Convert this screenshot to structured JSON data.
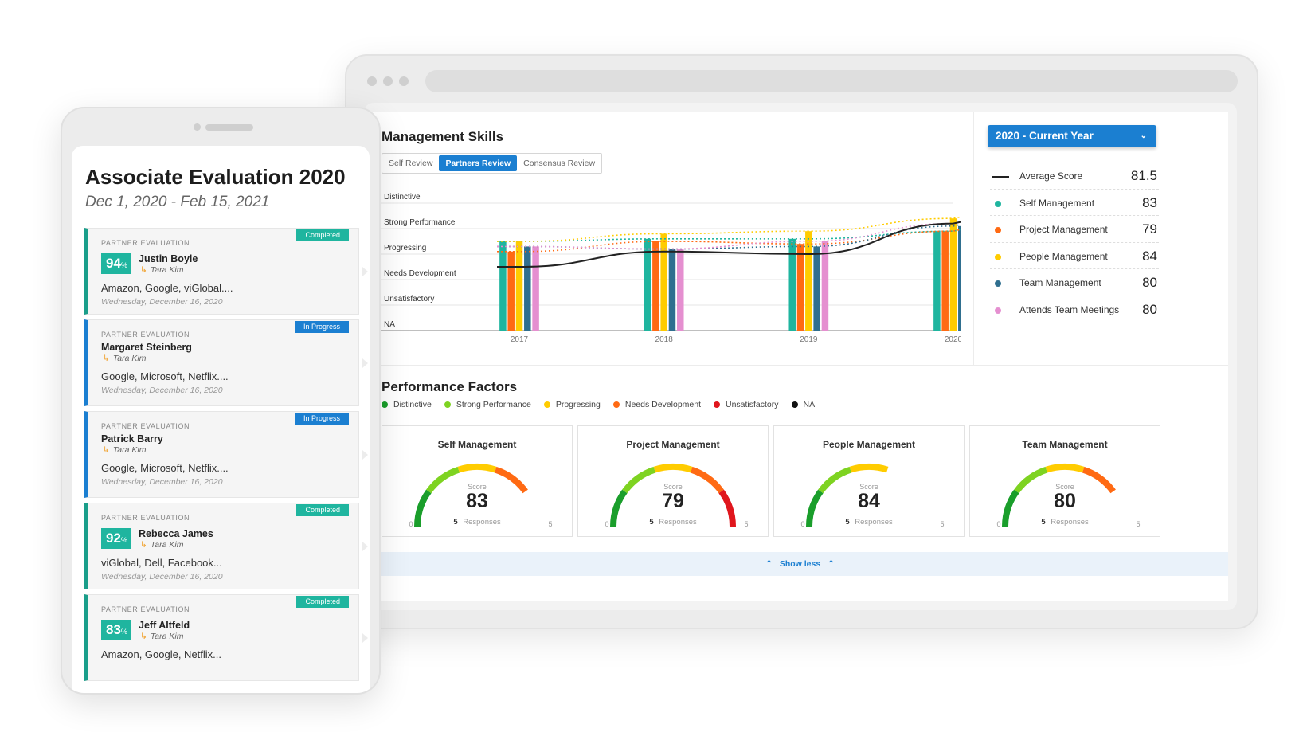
{
  "desktop": {
    "management_skills": {
      "title": "Management Skills",
      "tabs": [
        {
          "label": "Self Review",
          "active": false
        },
        {
          "label": "Partners Review",
          "active": true
        },
        {
          "label": "Consensus Review",
          "active": false
        }
      ]
    },
    "chart_data": {
      "type": "bar",
      "y_categories": [
        "Distinctive",
        "Strong Performance",
        "Progressing",
        "Needs Development",
        "Unsatisfactory",
        "NA"
      ],
      "categories": [
        "2017",
        "2018",
        "2019",
        "2020"
      ],
      "series": [
        {
          "name": "Self Management",
          "color": "#1fb59f",
          "values": [
            3.5,
            3.6,
            3.6,
            3.9
          ]
        },
        {
          "name": "Project Management",
          "color": "#ff6a13",
          "values": [
            3.1,
            3.5,
            3.4,
            3.9
          ]
        },
        {
          "name": "People Management",
          "color": "#ffcc00",
          "values": [
            3.5,
            3.8,
            3.9,
            4.4
          ]
        },
        {
          "name": "Team Management",
          "color": "#2f6f8f",
          "values": [
            3.3,
            3.2,
            3.3,
            4.1
          ]
        },
        {
          "name": "Attends Team Meetings",
          "color": "#e58fd0",
          "values": [
            3.3,
            3.2,
            3.5,
            4.2
          ]
        }
      ],
      "average_line": {
        "name": "Average Score",
        "color": "#222222",
        "values": [
          2.5,
          3.1,
          3.0,
          4.2
        ]
      },
      "ylim": [
        0,
        5
      ],
      "grid": true
    },
    "year_select": {
      "label": "2020 - Current Year"
    },
    "legend": [
      {
        "name": "Average Score",
        "value": "81.5",
        "color": "#222222",
        "line": true
      },
      {
        "name": "Self Management",
        "value": "83",
        "color": "#1fb59f"
      },
      {
        "name": "Project Management",
        "value": "79",
        "color": "#ff6a13"
      },
      {
        "name": "People Management",
        "value": "84",
        "color": "#ffcc00"
      },
      {
        "name": "Team Management",
        "value": "80",
        "color": "#2f6f8f"
      },
      {
        "name": "Attends Team Meetings",
        "value": "80",
        "color": "#e58fd0"
      }
    ],
    "performance_factors": {
      "title": "Performance Factors",
      "legend": [
        {
          "name": "Distinctive",
          "color": "#1a9e2b"
        },
        {
          "name": "Strong Performance",
          "color": "#7ed321"
        },
        {
          "name": "Progressing",
          "color": "#ffcc00"
        },
        {
          "name": "Needs Development",
          "color": "#ff6a13"
        },
        {
          "name": "Unsatisfactory",
          "color": "#e0161d"
        },
        {
          "name": "NA",
          "color": "#111111"
        }
      ],
      "gauges": [
        {
          "title": "Self Management",
          "score_label": "Score",
          "score": "83",
          "responses": "5",
          "responses_label": "Responses",
          "min": "0",
          "max": "5",
          "segments": [
            "#1a9e2b",
            "#7ed321",
            "#ffcc00",
            "#ff6a13"
          ]
        },
        {
          "title": "Project Management",
          "score_label": "Score",
          "score": "79",
          "responses": "5",
          "responses_label": "Responses",
          "min": "0",
          "max": "5",
          "segments": [
            "#1a9e2b",
            "#7ed321",
            "#ffcc00",
            "#ff6a13",
            "#e0161d"
          ]
        },
        {
          "title": "People Management",
          "score_label": "Score",
          "score": "84",
          "responses": "5",
          "responses_label": "Responses",
          "min": "0",
          "max": "5",
          "segments": [
            "#1a9e2b",
            "#7ed321",
            "#ffcc00"
          ]
        },
        {
          "title": "Team Management",
          "score_label": "Score",
          "score": "80",
          "responses": "5",
          "responses_label": "Responses",
          "min": "0",
          "max": "5",
          "segments": [
            "#1a9e2b",
            "#7ed321",
            "#ffcc00",
            "#ff6a13"
          ]
        }
      ],
      "show_less": "Show less"
    }
  },
  "mobile": {
    "title": "Associate Evaluation 2020",
    "date_range": "Dec 1, 2020 - Feb 15, 2021",
    "evaluations": [
      {
        "kind": "PARTNER EVALUATION",
        "status": "Completed",
        "score": "94",
        "score_unit": "%",
        "name": "Justin Boyle",
        "reviewer": "Tara Kim",
        "companies": "Amazon, Google, viGlobal....",
        "date": "Wednesday, December 16, 2020"
      },
      {
        "kind": "PARTNER EVALUATION",
        "status": "In Progress",
        "score": null,
        "score_unit": null,
        "name": "Margaret Steinberg",
        "reviewer": "Tara Kim",
        "companies": "Google, Microsoft, Netflix....",
        "date": "Wednesday, December 16, 2020"
      },
      {
        "kind": "PARTNER EVALUATION",
        "status": "In Progress",
        "score": null,
        "score_unit": null,
        "name": "Patrick Barry",
        "reviewer": "Tara Kim",
        "companies": "Google, Microsoft, Netflix....",
        "date": "Wednesday, December 16, 2020"
      },
      {
        "kind": "PARTNER EVALUATION",
        "status": "Completed",
        "score": "92",
        "score_unit": "%",
        "name": "Rebecca James",
        "reviewer": "Tara Kim",
        "companies": "viGlobal, Dell, Facebook...",
        "date": "Wednesday, December 16, 2020"
      },
      {
        "kind": "PARTNER EVALUATION",
        "status": "Completed",
        "score": "83",
        "score_unit": "%",
        "name": "Jeff Altfeld",
        "reviewer": "Tara Kim",
        "companies": "Amazon, Google, Netflix...",
        "date": ""
      }
    ]
  }
}
